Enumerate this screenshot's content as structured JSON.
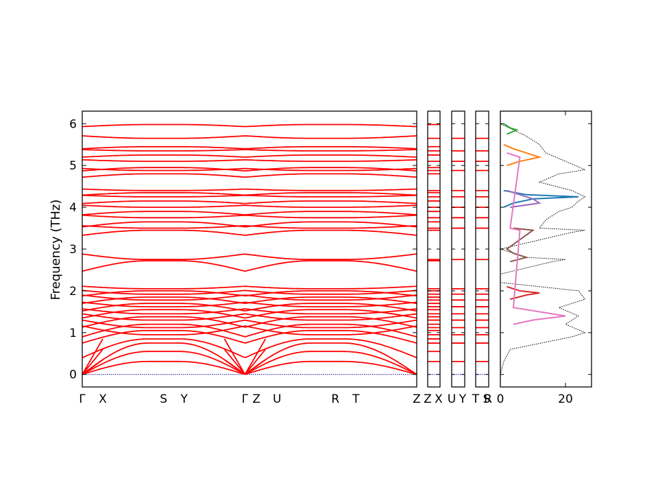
{
  "chart_data": {
    "type": "line",
    "title": "",
    "ylabel": "Frequency (THz)",
    "ylim": [
      -0.3,
      6.3
    ],
    "yticks": [
      "0",
      "1",
      "2",
      "3",
      "4",
      "5",
      "6"
    ],
    "grid": false,
    "line_color": "#ff0000",
    "zero_line_color": "#0000aa",
    "band_structure": {
      "path_labels": [
        "Γ",
        "X",
        "S",
        "Y",
        "Γ",
        "Z",
        "U",
        "R",
        "T",
        "Z"
      ],
      "path_positions": [
        0,
        0.5,
        1.98,
        2.48,
        3.96,
        4.24,
        4.74,
        6.16,
        6.66,
        8.14
      ],
      "acoustic_at_gamma": [
        0.0,
        0.0,
        0.0
      ],
      "band_levels": [
        0.31,
        0.55,
        0.75,
        0.85,
        0.95,
        1.05,
        1.12,
        1.2,
        1.3,
        1.38,
        1.45,
        1.55,
        1.62,
        1.7,
        1.78,
        1.85,
        1.92,
        2.0,
        2.05,
        2.72,
        2.75,
        3.45,
        3.5,
        3.65,
        3.75,
        3.9,
        4.0,
        4.15,
        4.25,
        4.35,
        4.4,
        4.8,
        4.88,
        4.95,
        5.1,
        5.25,
        5.35,
        5.45,
        5.65,
        5.98
      ],
      "band_dispersion_amplitude": [
        0.35,
        0.4,
        0.45,
        0.45,
        0.35,
        0.3,
        0.3,
        0.3,
        0.25,
        0.25,
        0.2,
        0.2,
        0.18,
        0.18,
        0.2,
        0.15,
        0.15,
        0.12,
        0.1,
        0.25,
        0.22,
        0.12,
        0.1,
        0.12,
        0.1,
        0.08,
        0.08,
        0.06,
        0.06,
        0.06,
        0.06,
        0.08,
        0.08,
        0.08,
        0.06,
        0.05,
        0.05,
        0.05,
        0.1,
        0.05
      ]
    },
    "segments": [
      {
        "labels": [
          "Z",
          "X"
        ]
      },
      {
        "labels": [
          "U",
          "Y"
        ]
      },
      {
        "labels": [
          "T",
          "S"
        ]
      },
      {
        "labels": [
          "R"
        ]
      }
    ],
    "dos": {
      "xlim": [
        0,
        28
      ],
      "xticks": [
        "0",
        "20"
      ],
      "total_color": "#000000",
      "total": {
        "freq": [
          0.0,
          0.3,
          0.6,
          0.9,
          1.0,
          1.2,
          1.4,
          1.6,
          1.8,
          2.0,
          2.2,
          2.4,
          2.7,
          2.75,
          2.8,
          3.0,
          3.4,
          3.45,
          3.5,
          3.7,
          3.9,
          4.0,
          4.15,
          4.25,
          4.4,
          4.6,
          4.8,
          4.9,
          5.1,
          5.3,
          5.5,
          5.7,
          6.0
        ],
        "dos": [
          0,
          1,
          3,
          22,
          26,
          20,
          24,
          18,
          26,
          24,
          0,
          0,
          16,
          20,
          8,
          0,
          22,
          26,
          12,
          14,
          18,
          22,
          24,
          26,
          22,
          12,
          18,
          26,
          20,
          14,
          12,
          8,
          0
        ]
      },
      "partials": [
        {
          "color": "#1f77b4",
          "freq": [
            4.0,
            4.1,
            4.2,
            4.25,
            4.3,
            4.4
          ],
          "dos": [
            1,
            4,
            10,
            24,
            8,
            1
          ]
        },
        {
          "color": "#ff7f0e",
          "freq": [
            5.0,
            5.1,
            5.2,
            5.3,
            5.4,
            5.5
          ],
          "dos": [
            2,
            6,
            12,
            8,
            4,
            1
          ]
        },
        {
          "color": "#2ca02c",
          "freq": [
            5.75,
            5.85,
            5.9,
            6.0
          ],
          "dos": [
            2,
            5,
            3,
            1
          ]
        },
        {
          "color": "#d62728",
          "freq": [
            1.8,
            1.9,
            1.95,
            2.0,
            2.1
          ],
          "dos": [
            3,
            8,
            12,
            6,
            2
          ]
        },
        {
          "color": "#9467bd",
          "freq": [
            4.0,
            4.1,
            4.2,
            4.3,
            4.4
          ],
          "dos": [
            3,
            12,
            10,
            6,
            2
          ]
        },
        {
          "color": "#8c564b",
          "freq": [
            2.7,
            2.8,
            2.9,
            3.0,
            3.45,
            3.5
          ],
          "dos": [
            3,
            8,
            4,
            2,
            10,
            4
          ]
        },
        {
          "color": "#e377c2",
          "freq": [
            1.2,
            1.3,
            1.4,
            1.5,
            1.6,
            3.45,
            3.5,
            5.2,
            5.3
          ],
          "dos": [
            4,
            10,
            20,
            12,
            4,
            6,
            3,
            6,
            2
          ]
        }
      ]
    }
  }
}
